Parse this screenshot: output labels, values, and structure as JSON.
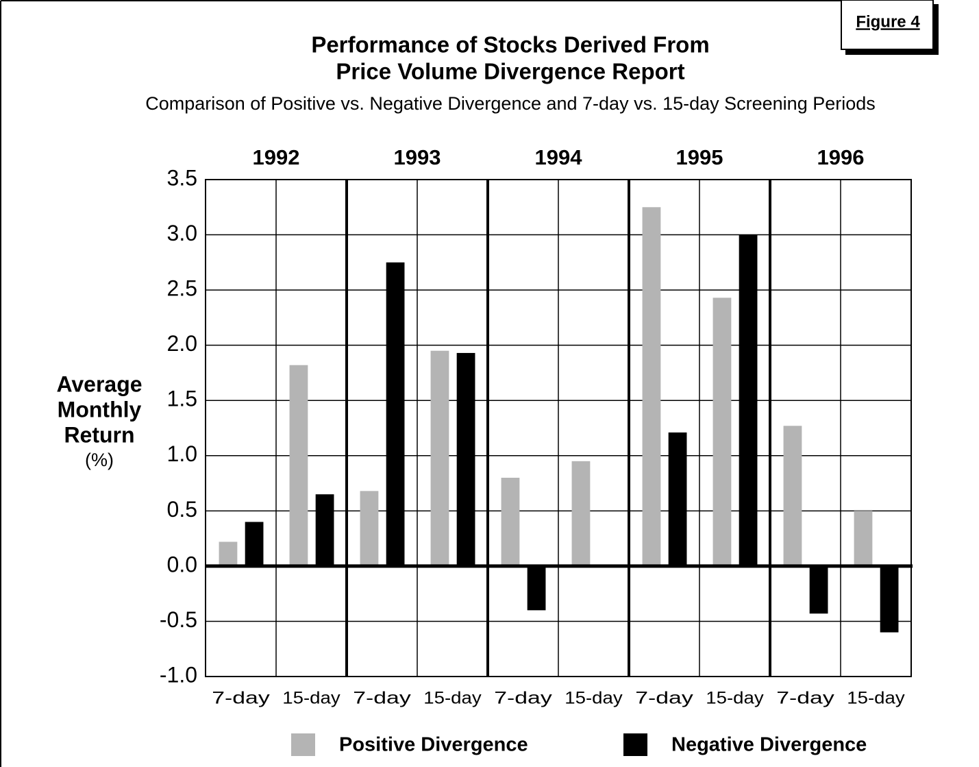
{
  "chart_data": {
    "type": "bar",
    "figure_label": "Figure 4",
    "title": [
      "Performance of Stocks Derived From",
      "Price Volume Divergence Report"
    ],
    "subtitle": "Comparison of Positive vs. Negative Divergence and 7-day vs. 15-day Screening Periods",
    "y_label": [
      "Average",
      "Monthly",
      "Return",
      "(%)"
    ],
    "groups": [
      "1992",
      "1993",
      "1994",
      "1995",
      "1996"
    ],
    "categories": [
      "7-day",
      "15-day",
      "7-day",
      "15-day",
      "7-day",
      "15-day",
      "7-day",
      "15-day",
      "7-day",
      "15-day"
    ],
    "series": [
      {
        "name": "Positive Divergence",
        "color": "#b4b4b4",
        "values": [
          0.22,
          1.82,
          0.68,
          1.95,
          0.8,
          0.95,
          3.25,
          2.43,
          1.27,
          0.5
        ]
      },
      {
        "name": "Negative Divergence",
        "color": "#000000",
        "values": [
          0.4,
          0.65,
          2.75,
          1.93,
          -0.4,
          null,
          1.21,
          3.0,
          -0.43,
          -0.6
        ]
      }
    ],
    "ylim": [
      -1,
      3.5
    ],
    "yticks": [
      {
        "value": -1,
        "label": "-1.0"
      },
      -0.5,
      {
        "value": 0,
        "label": "0.0"
      },
      0.5,
      {
        "value": 1,
        "label": "1.0"
      },
      1.5,
      {
        "value": 2,
        "label": "2.0"
      },
      2.5,
      {
        "value": 3,
        "label": "3.0"
      },
      3.5
    ],
    "grid": true
  }
}
